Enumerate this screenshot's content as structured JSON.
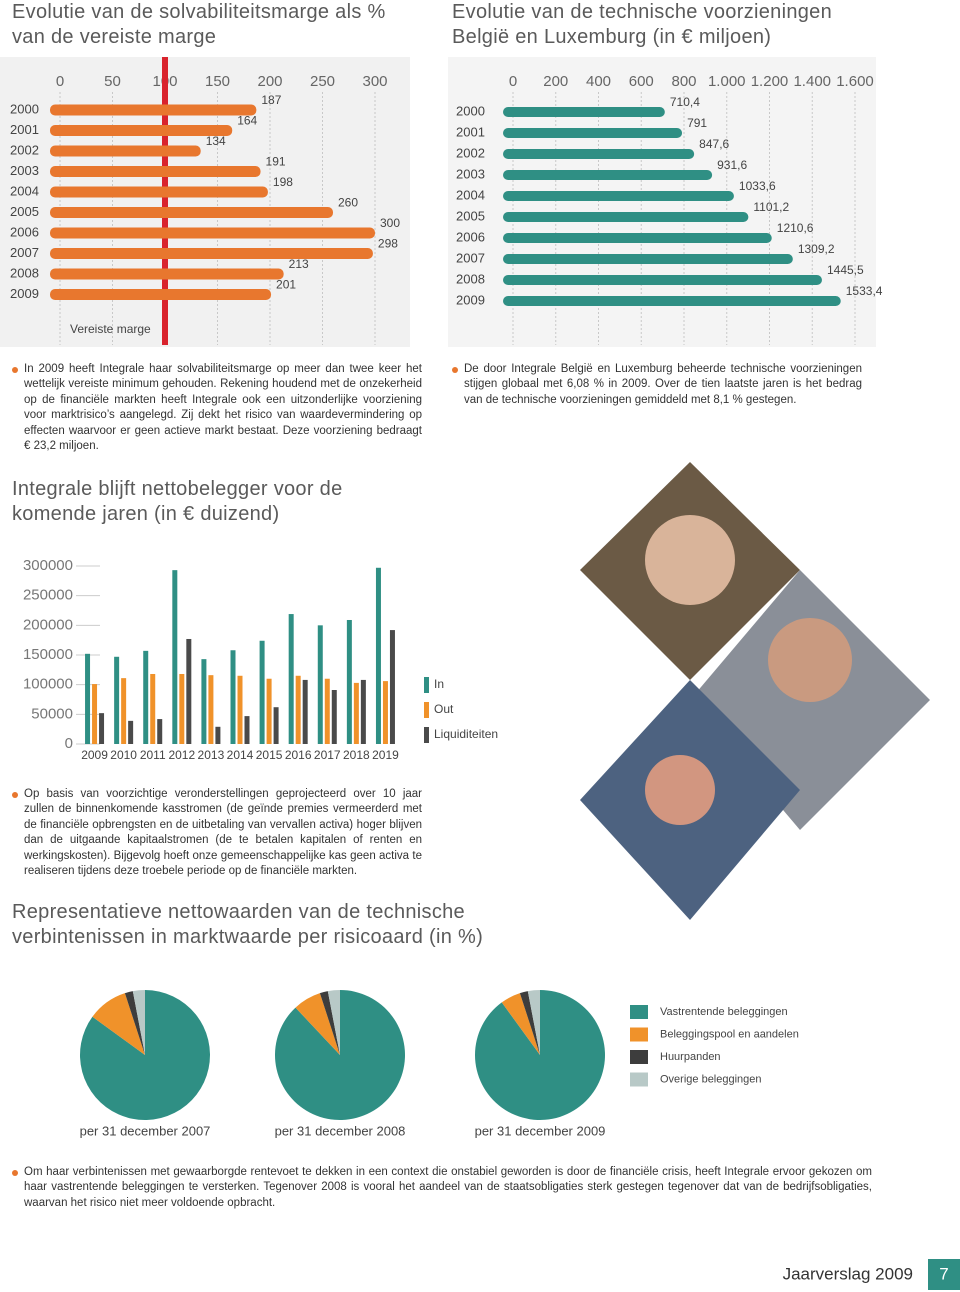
{
  "chart_data": [
    {
      "type": "hbar",
      "title": "Evolutie van de solvabiliteitsmarge als % van de vereiste marge",
      "categories": [
        "2000",
        "2001",
        "2002",
        "2003",
        "2004",
        "2005",
        "2006",
        "2007",
        "2008",
        "2009"
      ],
      "values": [
        187,
        164,
        134,
        191,
        198,
        260,
        300,
        298,
        213,
        201
      ],
      "color": "#e8772e",
      "xlim": [
        0,
        300
      ],
      "xticks": [
        0,
        50,
        100,
        150,
        200,
        250,
        300
      ],
      "grid": true,
      "reference_line": {
        "value": 100,
        "label": "Vereiste marge",
        "color": "#d9232d"
      }
    },
    {
      "type": "hbar",
      "title": "Evolutie van de technische voorzieningen België en Luxemburg (in € miljoen)",
      "categories": [
        "2000",
        "2001",
        "2002",
        "2003",
        "2004",
        "2005",
        "2006",
        "2007",
        "2008",
        "2009"
      ],
      "values": [
        710.4,
        791,
        847.6,
        931.6,
        1033.6,
        1101.2,
        1210.6,
        1309.2,
        1445.5,
        1533.4
      ],
      "value_labels": [
        "710,4",
        "791",
        "847,6",
        "931,6",
        "1033,6",
        "1101,2",
        "1210,6",
        "1309,2",
        "1445,5",
        "1533,4"
      ],
      "color": "#2f8f84",
      "xlim": [
        0,
        1600
      ],
      "xticks": [
        0,
        200,
        400,
        600,
        800,
        {
          "value": 1000,
          "label": "1.000"
        },
        {
          "value": 1200,
          "label": "1.200"
        },
        {
          "value": 1400,
          "label": "1.400"
        },
        {
          "value": 1600,
          "label": "1.600"
        }
      ],
      "grid": true
    },
    {
      "type": "bar",
      "title": "Integrale blijft nettobelegger voor de komende jaren (in € duizend)",
      "categories": [
        "2009",
        "2010",
        "2011",
        "2012",
        "2013",
        "2014",
        "2015",
        "2016",
        "2017",
        "2018",
        "2019"
      ],
      "series": [
        {
          "name": "In",
          "color": "#2f8f84",
          "values": [
            152000,
            147000,
            157000,
            293000,
            143000,
            158000,
            174000,
            219000,
            200000,
            209000,
            297000
          ]
        },
        {
          "name": "Out",
          "color": "#f0922a",
          "values": [
            101000,
            111000,
            118000,
            118000,
            116000,
            115000,
            110000,
            115000,
            110000,
            103000,
            106000
          ]
        },
        {
          "name": "Liquiditeiten",
          "color": "#4a4a4a",
          "values": [
            52000,
            39000,
            42000,
            177000,
            29000,
            47000,
            62000,
            108000,
            91000,
            108000,
            192000
          ]
        }
      ],
      "ylim": [
        0,
        300000
      ],
      "yticks": [
        0,
        50000,
        100000,
        150000,
        200000,
        250000,
        300000
      ]
    },
    {
      "type": "pie",
      "title": "Representatieve nettowaarden van de technische verbintenissen in marktwaarde per risicoaard (in %)",
      "categories": [
        "Vastrentende beleggingen",
        "Beleggingspool en aandelen",
        "Huurpanden",
        "Overige beleggingen"
      ],
      "colors": [
        "#2f8f84",
        "#f0922a",
        "#3d3d3d",
        "#b8c9c7"
      ],
      "series": [
        {
          "name": "per 31 december 2007",
          "values": [
            85,
            10,
            2,
            3
          ]
        },
        {
          "name": "per 31 december 2008",
          "values": [
            88,
            7,
            2,
            3
          ]
        },
        {
          "name": "per 31 december 2009",
          "values": [
            90,
            5,
            2,
            3
          ]
        }
      ]
    }
  ],
  "paragraphs": [
    "In 2009 heeft Integrale haar solvabiliteitsmarge op meer dan twee keer het wettelijk vereiste minimum gehouden. Rekening houdend met de onzekerheid op de financiële markten heeft Integrale ook een uitzonderlijke voorziening voor marktrisico’s aangelegd. Zij dekt het risico van waardevermindering op effecten waarvoor er geen actieve markt bestaat. Deze voorziening bedraagt € 23,2 miljoen.",
    "De door Integrale België en Luxemburg beheerde technische voorzieningen stijgen globaal met 6,08 % in 2009. Over de tien laatste jaren is het bedrag van de technische voorzieningen gemiddeld met 8,1 % gestegen.",
    "Op basis van voorzichtige veronderstellingen geprojecteerd over 10 jaar zullen de binnenkomende kasstromen (de geïnde premies vermeerderd met de financiële opbrengsten en de uitbetaling van vervallen activa) hoger blijven dan de uitgaande kapitaalstromen (de te betalen kapitalen of renten en werkingskosten). Bijgevolg hoeft onze gemeenschappelijke kas geen activa te realiseren tijdens deze troebele periode op de financiële markten.",
    "Om haar verbintenissen met gewaarborgde rentevoet te dekken in een context die onstabiel geworden is door de financiële crisis, heeft Integrale ervoor gekozen om haar vastrentende beleggingen te versterken. Tegenover 2008 is vooral het aandeel van de staatsobligaties sterk gestegen tegenover dat van de bedrijfsobligaties, waarvan het risico niet meer voldoende opbracht."
  ],
  "footer": {
    "report": "Jaarverslag 2009",
    "page": "7"
  }
}
